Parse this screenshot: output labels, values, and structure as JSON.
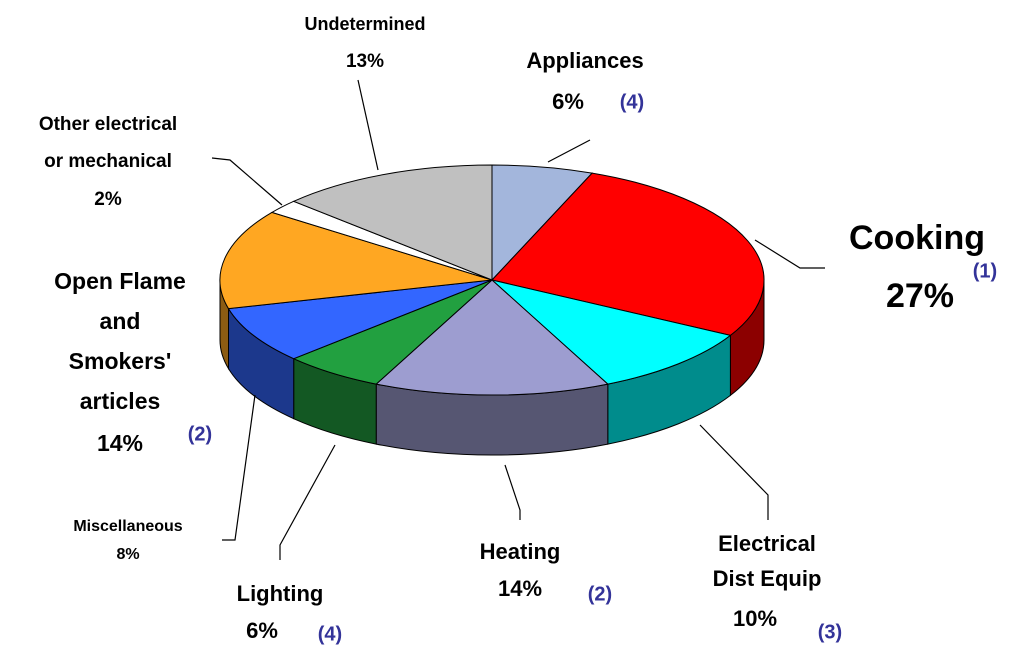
{
  "chart_data": {
    "type": "pie3d",
    "categories": [
      "Appliances",
      "Cooking",
      "Electrical\nDist Equip",
      "Heating",
      "Lighting",
      "Miscellaneous",
      "Open Flame\nand\nSmokers'\narticles",
      "Other electrical\nor mechanical",
      "Undetermined"
    ],
    "values": [
      6,
      27,
      10,
      14,
      6,
      8,
      14,
      2,
      13
    ],
    "value_labels": [
      "6%",
      "27%",
      "10%",
      "14%",
      "6%",
      "8%",
      "14%",
      "2%",
      "13%"
    ],
    "annotations": [
      "(4)",
      "(1)",
      "(3)",
      "(2)",
      "(4)",
      null,
      "(2)",
      null,
      null
    ],
    "colors": [
      "#a3b6dc",
      "#ff0000",
      "#00ffff",
      "#9d9dd0",
      "#22a040",
      "#3366ff",
      "#ffa722",
      "#ffffff",
      "#c0c0c0"
    ]
  }
}
